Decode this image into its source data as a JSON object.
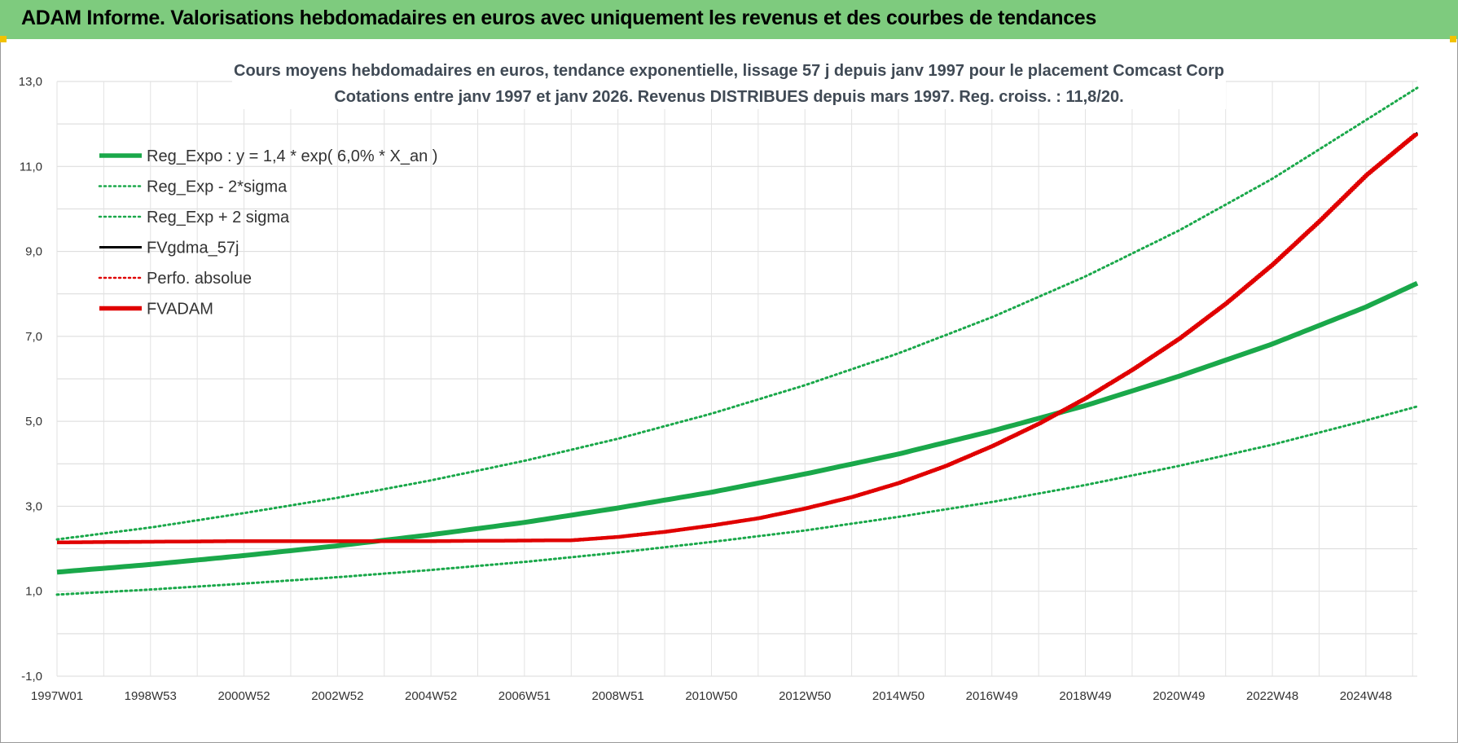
{
  "header": {
    "title": "ADAM Informe. Valorisations hebdomadaires en euros avec uniquement les revenus et des courbes de tendances"
  },
  "chart_data": {
    "type": "line",
    "title": "Cours moyens hebdomadaires en euros, tendance exponentielle, lissage 57 j depuis janv 1997  pour le  placement Comcast Corp",
    "subtitle": "Cotations entre janv 1997 et janv 2026. Revenus DISTRIBUES depuis mars 1997. Reg. croiss. : 11,8/20.",
    "x_tick_labels": [
      "1997W01",
      "1998W53",
      "2000W52",
      "2002W52",
      "2004W52",
      "2006W51",
      "2008W51",
      "2010W50",
      "2012W50",
      "2014W50",
      "2016W49",
      "2018W49",
      "2020W49",
      "2022W48",
      "2024W48"
    ],
    "x_range": [
      1997.0,
      2026.1
    ],
    "ylim": [
      -1.0,
      13.0
    ],
    "y_ticks": [
      -1.0,
      1.0,
      3.0,
      5.0,
      7.0,
      9.0,
      11.0,
      13.0
    ],
    "y_tick_labels": [
      "-1,0",
      "1,0",
      "3,0",
      "5,0",
      "7,0",
      "9,0",
      "11,0",
      "13,0"
    ],
    "grid": true,
    "legend_position": "top-left",
    "series": [
      {
        "name": "Reg_Expo : y = 1,4 * exp( 6,0% *  X_an )",
        "color": "#1aa84a",
        "style": "solid-thick",
        "x": [
          1997.0,
          1999.0,
          2001.0,
          2003.0,
          2005.0,
          2007.0,
          2009.0,
          2011.0,
          2013.0,
          2015.0,
          2017.0,
          2019.0,
          2021.0,
          2023.0,
          2025.0,
          2026.1
        ],
        "y": [
          1.45,
          1.63,
          1.84,
          2.07,
          2.33,
          2.62,
          2.96,
          3.33,
          3.76,
          4.23,
          4.77,
          5.37,
          6.06,
          6.82,
          7.69,
          8.25
        ]
      },
      {
        "name": "Reg_Exp - 2*sigma",
        "color": "#1aa84a",
        "style": "dotted",
        "x": [
          1997.0,
          1999.0,
          2001.0,
          2003.0,
          2005.0,
          2007.0,
          2009.0,
          2011.0,
          2013.0,
          2015.0,
          2017.0,
          2019.0,
          2021.0,
          2023.0,
          2025.0,
          2026.1
        ],
        "y": [
          0.92,
          1.04,
          1.18,
          1.33,
          1.5,
          1.69,
          1.91,
          2.16,
          2.43,
          2.75,
          3.1,
          3.5,
          3.95,
          4.45,
          5.02,
          5.35
        ]
      },
      {
        "name": "Reg_Exp + 2 sigma",
        "color": "#1aa84a",
        "style": "dotted",
        "x": [
          1997.0,
          1999.0,
          2001.0,
          2003.0,
          2005.0,
          2007.0,
          2009.0,
          2011.0,
          2013.0,
          2015.0,
          2017.0,
          2019.0,
          2021.0,
          2023.0,
          2025.0,
          2026.1
        ],
        "y": [
          2.22,
          2.5,
          2.84,
          3.2,
          3.61,
          4.07,
          4.59,
          5.18,
          5.85,
          6.6,
          7.45,
          8.41,
          9.49,
          10.71,
          12.09,
          12.85
        ]
      },
      {
        "name": "FVgdma_57j",
        "color": "#000000",
        "style": "solid",
        "x": [
          1997.0,
          2001.0,
          2005.0,
          2008.0,
          2009.0,
          2010.0,
          2011.0,
          2012.0,
          2013.0,
          2014.0,
          2015.0,
          2016.0,
          2017.0,
          2018.0,
          2019.0,
          2020.0,
          2021.0,
          2022.0,
          2023.0,
          2024.0,
          2025.0,
          2026.1
        ],
        "y": [
          2.15,
          2.18,
          2.18,
          2.2,
          2.28,
          2.4,
          2.55,
          2.72,
          2.95,
          3.22,
          3.55,
          3.95,
          4.42,
          4.95,
          5.55,
          6.22,
          6.95,
          7.78,
          8.7,
          9.72,
          10.8,
          11.8
        ]
      },
      {
        "name": "Perfo. absolue",
        "color": "#e00000",
        "style": "dotted",
        "x": [],
        "y": []
      },
      {
        "name": "FVADAM",
        "color": "#e00000",
        "style": "solid-thick-stepped",
        "x": [
          1997.0,
          2001.0,
          2005.0,
          2008.0,
          2009.0,
          2010.0,
          2011.0,
          2012.0,
          2013.0,
          2014.0,
          2015.0,
          2016.0,
          2017.0,
          2018.0,
          2019.0,
          2020.0,
          2021.0,
          2022.0,
          2023.0,
          2024.0,
          2025.0,
          2026.1
        ],
        "y": [
          2.15,
          2.18,
          2.18,
          2.2,
          2.28,
          2.4,
          2.55,
          2.72,
          2.95,
          3.22,
          3.55,
          3.95,
          4.42,
          4.95,
          5.55,
          6.22,
          6.95,
          7.78,
          8.7,
          9.72,
          10.8,
          11.8
        ]
      }
    ]
  }
}
